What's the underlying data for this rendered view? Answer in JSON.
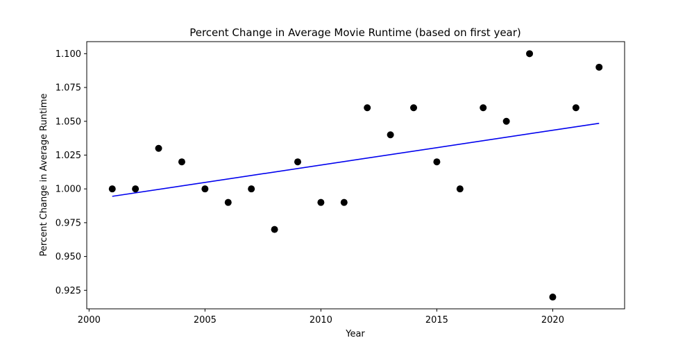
{
  "chart_data": {
    "type": "scatter",
    "title": "Percent Change in Average Movie Runtime (based on first year)",
    "xlabel": "Year",
    "ylabel": "Percent Change in Average Runtime",
    "xlim": [
      1999.9,
      2023.1
    ],
    "ylim": [
      0.9113,
      1.1089
    ],
    "x_ticks": [
      2000,
      2005,
      2010,
      2015,
      2020
    ],
    "x_tick_labels": [
      "2000",
      "2005",
      "2010",
      "2015",
      "2020"
    ],
    "y_ticks": [
      0.925,
      0.95,
      0.975,
      1.0,
      1.025,
      1.05,
      1.075,
      1.1
    ],
    "y_tick_labels": [
      "0.925",
      "0.950",
      "0.975",
      "1.000",
      "1.025",
      "1.050",
      "1.075",
      "1.100"
    ],
    "grid": false,
    "series": [
      {
        "type": "scatter",
        "color": "#000000",
        "x": [
          2001,
          2002,
          2003,
          2004,
          2005,
          2006,
          2007,
          2008,
          2009,
          2010,
          2011,
          2012,
          2013,
          2014,
          2015,
          2016,
          2017,
          2018,
          2019,
          2020,
          2021,
          2022
        ],
        "y": [
          1.0,
          1.0,
          1.03,
          1.02,
          1.0,
          0.99,
          1.0,
          0.97,
          1.02,
          0.99,
          0.99,
          1.06,
          1.04,
          1.06,
          1.02,
          1.0,
          1.06,
          1.05,
          1.1,
          0.92,
          1.06,
          1.09
        ]
      },
      {
        "type": "line",
        "color": "#0000ee",
        "x": [
          2001,
          2022
        ],
        "y": [
          0.9945,
          1.0485
        ]
      }
    ]
  }
}
